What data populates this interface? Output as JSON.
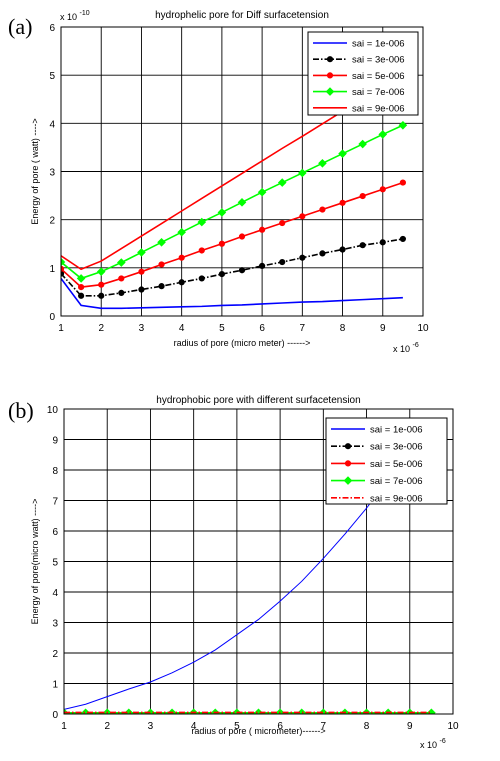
{
  "chart_data": [
    {
      "panel_label": "(a)",
      "type": "line",
      "title": "hydrophelic pore for Diff surfacetension",
      "xlabel": "radius of pore (micro meter) ------>",
      "ylabel": "Energy of pore ( watt) ---->",
      "x_exponent": "x 10",
      "x_exponent_power": "-6",
      "y_exponent": "x 10",
      "y_exponent_power": "-10",
      "xlim": [
        1,
        10
      ],
      "ylim": [
        0,
        6
      ],
      "xticks": [
        1,
        2,
        3,
        4,
        5,
        6,
        7,
        8,
        9,
        10
      ],
      "yticks": [
        0,
        1,
        2,
        3,
        4,
        5,
        6
      ],
      "grid": true,
      "legend_position": "top-right",
      "x": [
        1,
        1.5,
        2,
        2.5,
        3,
        3.5,
        4,
        4.5,
        5,
        5.5,
        6,
        6.5,
        7,
        7.5,
        8,
        8.5,
        9,
        9.5
      ],
      "series": [
        {
          "name": "sai = 1e-006",
          "color": "#0000ff",
          "marker": "none",
          "style": "solid",
          "values": [
            0.78,
            0.22,
            0.16,
            0.16,
            0.17,
            0.18,
            0.19,
            0.2,
            0.22,
            0.23,
            0.25,
            0.27,
            0.29,
            0.3,
            0.32,
            0.34,
            0.36,
            0.38
          ]
        },
        {
          "name": "sai = 3e-006",
          "color": "#000000",
          "marker": "dot",
          "style": "dashdot",
          "values": [
            0.88,
            0.42,
            0.42,
            0.48,
            0.55,
            0.62,
            0.7,
            0.78,
            0.87,
            0.95,
            1.04,
            1.12,
            1.21,
            1.3,
            1.38,
            1.47,
            1.53,
            1.6
          ]
        },
        {
          "name": "sai = 5e-006",
          "color": "#ff0000",
          "marker": "dot",
          "style": "solid",
          "values": [
            0.98,
            0.6,
            0.65,
            0.78,
            0.92,
            1.07,
            1.21,
            1.36,
            1.5,
            1.65,
            1.79,
            1.93,
            2.07,
            2.21,
            2.35,
            2.49,
            2.63,
            2.77
          ]
        },
        {
          "name": "sai = 7e-006",
          "color": "#00ff00",
          "marker": "diamond",
          "style": "solid",
          "values": [
            1.12,
            0.78,
            0.92,
            1.11,
            1.32,
            1.53,
            1.74,
            1.95,
            2.15,
            2.36,
            2.57,
            2.77,
            2.97,
            3.17,
            3.37,
            3.57,
            3.77,
            3.96
          ]
        },
        {
          "name": "sai = 9e-006",
          "color": "#ff0000",
          "marker": "none",
          "style": "solid",
          "values": [
            1.25,
            0.97,
            1.14,
            1.4,
            1.66,
            1.92,
            2.18,
            2.44,
            2.7,
            2.96,
            3.22,
            3.48,
            3.73,
            3.99,
            4.25,
            4.5,
            4.76,
            5.02
          ]
        }
      ]
    },
    {
      "panel_label": "(b)",
      "type": "line",
      "title": "hydrophobic pore with different surfacetension",
      "xlabel": "radius of pore ( micrometer)------>",
      "ylabel": "Energy of pore(micro watt) ---->",
      "x_exponent": "x 10",
      "x_exponent_power": "-6",
      "xlim": [
        1,
        10
      ],
      "ylim": [
        0,
        10
      ],
      "xticks": [
        1,
        2,
        3,
        4,
        5,
        6,
        7,
        8,
        9,
        10
      ],
      "yticks": [
        0,
        1,
        2,
        3,
        4,
        5,
        6,
        7,
        8,
        9,
        10
      ],
      "grid": true,
      "legend_position": "top-right",
      "x": [
        1,
        1.5,
        2,
        2.5,
        3,
        3.5,
        4,
        4.5,
        5,
        5.5,
        6,
        6.5,
        7,
        7.5,
        8,
        8.5,
        9,
        9.5
      ],
      "series": [
        {
          "name": "sai = 1e-006",
          "color": "#0000ff",
          "marker": "none",
          "style": "solid",
          "values": [
            0.15,
            0.32,
            0.57,
            0.82,
            1.05,
            1.35,
            1.7,
            2.1,
            2.6,
            3.1,
            3.7,
            4.35,
            5.1,
            5.9,
            6.75,
            7.7,
            8.6,
            9.5
          ]
        },
        {
          "name": "sai = 3e-006",
          "color": "#000000",
          "marker": "dot",
          "style": "dashdot",
          "values": [
            0.02,
            0.02,
            0.02,
            0.02,
            0.02,
            0.02,
            0.02,
            0.02,
            0.02,
            0.02,
            0.02,
            0.02,
            0.02,
            0.02,
            0.02,
            0.02,
            0.02,
            0.02
          ]
        },
        {
          "name": "sai = 5e-006",
          "color": "#ff0000",
          "marker": "dot",
          "style": "solid",
          "values": [
            0.03,
            0.03,
            0.03,
            0.03,
            0.03,
            0.03,
            0.03,
            0.03,
            0.03,
            0.03,
            0.03,
            0.03,
            0.03,
            0.03,
            0.03,
            0.03,
            0.03,
            0.03
          ]
        },
        {
          "name": "sai = 7e-006",
          "color": "#00ff00",
          "marker": "diamond",
          "style": "solid",
          "values": [
            0.04,
            0.04,
            0.04,
            0.04,
            0.04,
            0.04,
            0.04,
            0.04,
            0.04,
            0.04,
            0.04,
            0.04,
            0.04,
            0.04,
            0.04,
            0.04,
            0.04,
            0.04
          ]
        },
        {
          "name": "sai = 9e-006",
          "color": "#ff0000",
          "marker": "none",
          "style": "dashdot",
          "values": [
            0.05,
            0.05,
            0.05,
            0.05,
            0.05,
            0.05,
            0.05,
            0.05,
            0.05,
            0.05,
            0.05,
            0.05,
            0.05,
            0.05,
            0.05,
            0.05,
            0.05,
            0.05
          ]
        }
      ]
    }
  ]
}
